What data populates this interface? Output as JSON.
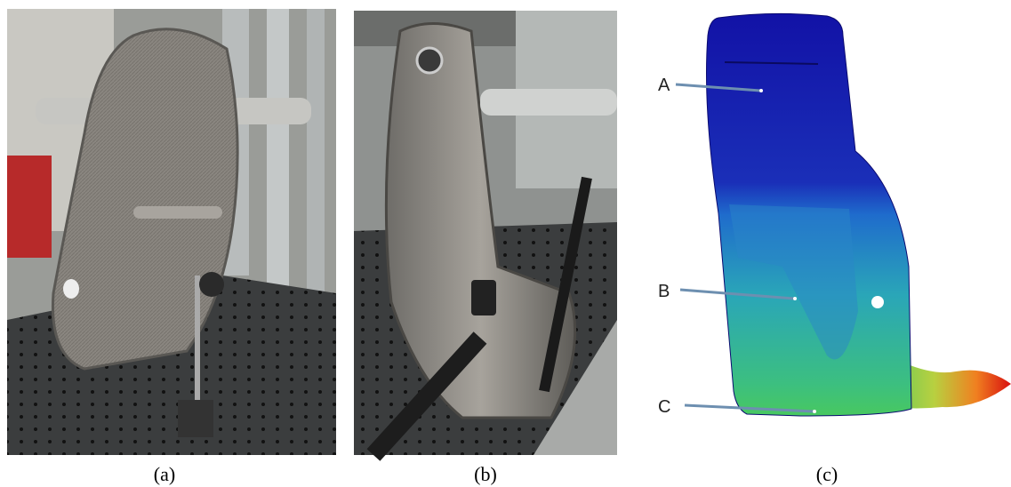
{
  "panels": [
    {
      "caption": "(a)"
    },
    {
      "caption": "(b)"
    },
    {
      "caption": "(c)",
      "points": [
        {
          "label": "A"
        },
        {
          "label": "B"
        },
        {
          "label": "C"
        }
      ]
    }
  ]
}
